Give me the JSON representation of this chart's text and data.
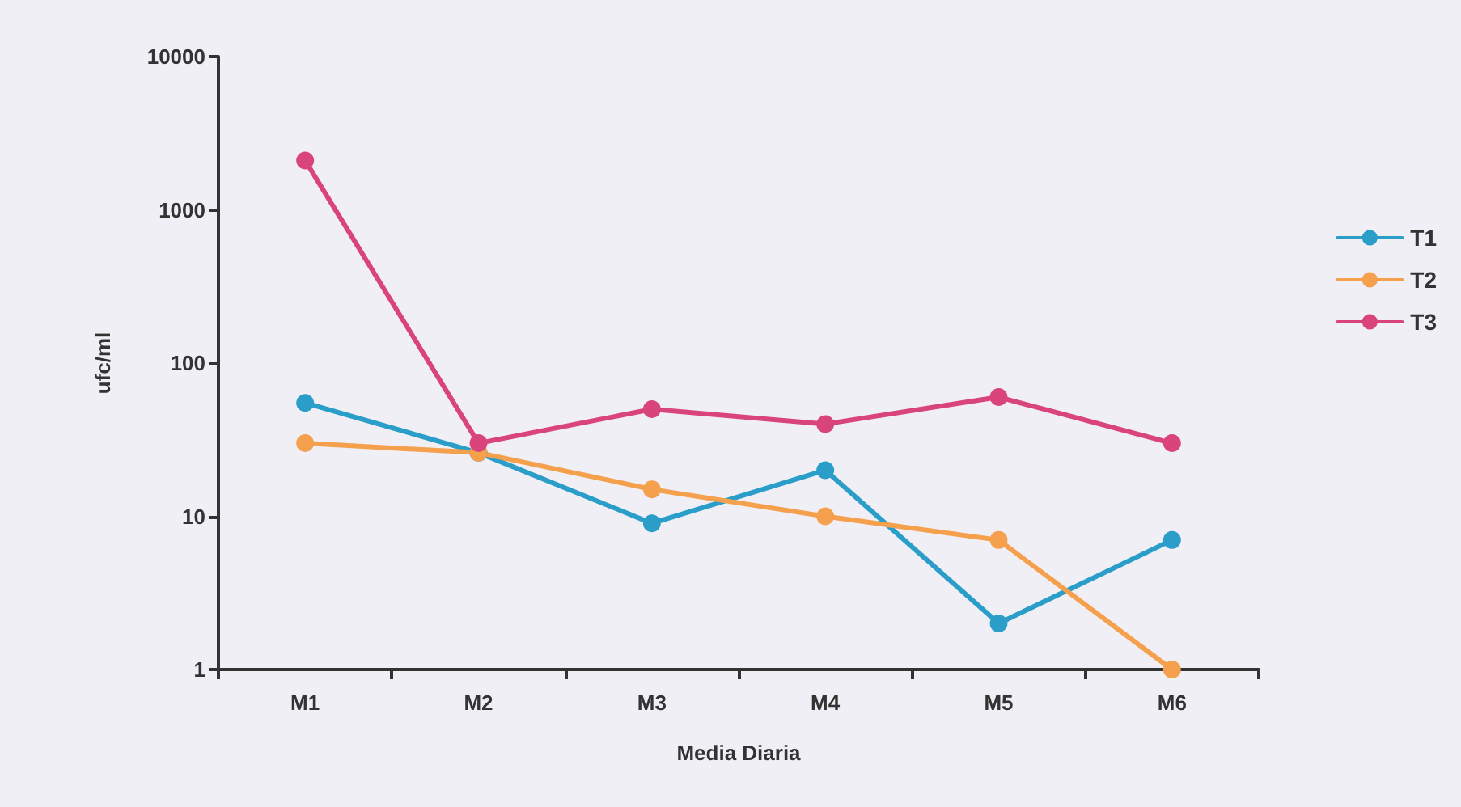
{
  "chart_data": {
    "type": "line",
    "xlabel": "Media Diaria",
    "ylabel": "ufc/ml",
    "categories": [
      "M1",
      "M2",
      "M3",
      "M4",
      "M5",
      "M6"
    ],
    "series": [
      {
        "name": "T1",
        "color": "#2a9ec9",
        "values": [
          55,
          26,
          9,
          20,
          2,
          7
        ]
      },
      {
        "name": "T2",
        "color": "#f4a04c",
        "values": [
          30,
          26,
          15,
          10,
          7,
          1
        ]
      },
      {
        "name": "T3",
        "color": "#d9457a",
        "values": [
          2100,
          30,
          50,
          40,
          60,
          30
        ]
      }
    ],
    "log": "y",
    "ylim": [
      1,
      10000
    ],
    "yticks": [
      1,
      10,
      100,
      1000,
      10000
    ],
    "grid": false,
    "legend": "right",
    "marker": "circle",
    "line_style": "solid"
  }
}
